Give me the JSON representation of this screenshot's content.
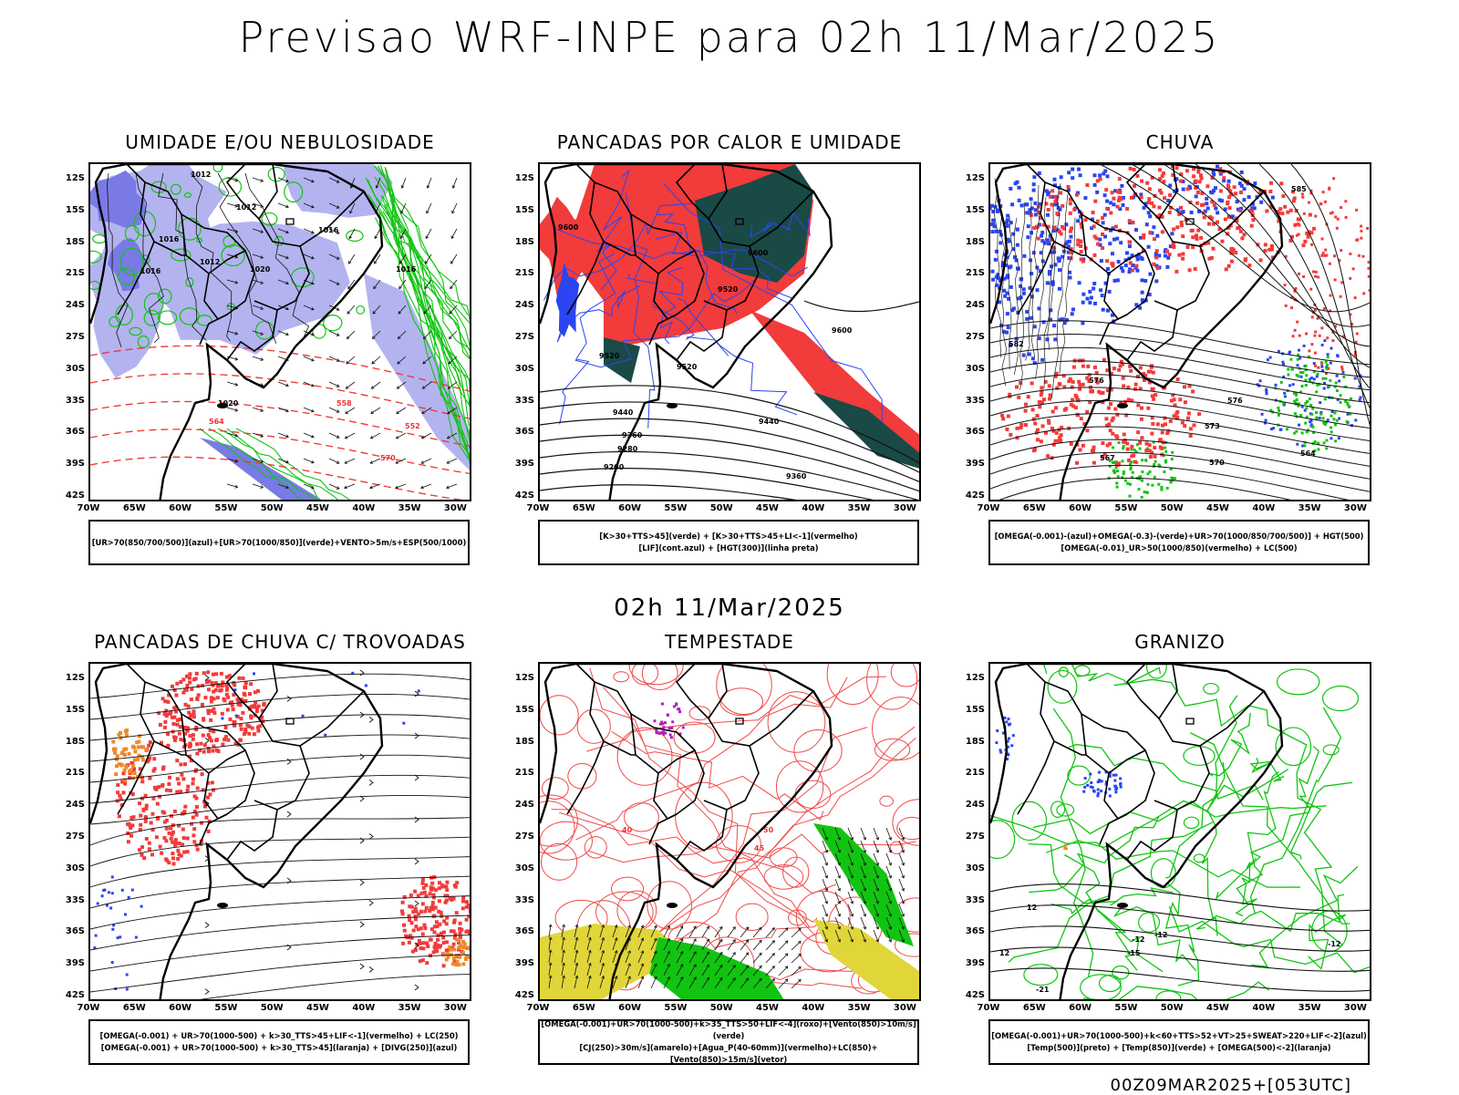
{
  "header": {
    "title": "Previsao WRF-INPE  para 02h 11/Mar/2025"
  },
  "subtitle": "02h 11/Mar/2025",
  "footer": "00Z09MAR2025+[053UTC]",
  "axes": {
    "y_labels": [
      "12S",
      "15S",
      "18S",
      "21S",
      "24S",
      "27S",
      "30S",
      "33S",
      "36S",
      "39S",
      "42S"
    ],
    "x_labels": [
      "70W",
      "65W",
      "60W",
      "55W",
      "50W",
      "45W",
      "40W",
      "35W",
      "30W"
    ]
  },
  "colors": {
    "blue": "#2b45f0",
    "lavender": "#b3b3f0",
    "purple": "#7a7ae6",
    "green": "#11c411",
    "red": "#f23b3b",
    "dark_teal": "#1a4a46",
    "yellow": "#e0d63a",
    "orange": "#ee8a2a",
    "magenta": "#b020c0"
  },
  "panels": [
    {
      "id": "umidade",
      "title": "UMIDADE E/OU NEBULOSIDADE",
      "legend": [
        "[UR>70(850/700/500)](azul)+[UR>70(1000/850)](verde)+VENTO>5m/s+ESP(500/1000)"
      ],
      "contour_labels": [
        "1012",
        "1012",
        "1012",
        "1016",
        "1016",
        "1020",
        "1016",
        "1016",
        "1020",
        "570",
        "564",
        "558",
        "552"
      ]
    },
    {
      "id": "pancadas_calor",
      "title": "PANCADAS POR CALOR E UMIDADE",
      "legend": [
        "[K>30+TTS>45](verde) + [K>30+TTS>45+LI<-1](vermelho)",
        "[LIF](cont.azul) + [HGT(300)](linha preta)"
      ],
      "contour_labels": [
        "9600",
        "9600",
        "9520",
        "9600",
        "9520",
        "9520",
        "9440",
        "9440",
        "9360",
        "9360",
        "9280",
        "9200"
      ]
    },
    {
      "id": "chuva",
      "title": "CHUVA",
      "legend": [
        "[OMEGA(-0.001)-(azul)+OMEGA(-0.3)-(verde)+UR>70(1000/850/700/500)] + HGT(500)",
        "[OMEGA(-0.01)_UR>50(1000/850)(vermelho) + LC(500)"
      ],
      "contour_labels": [
        "582",
        "576",
        "576",
        "573",
        "570",
        "567",
        "564",
        "585"
      ]
    },
    {
      "id": "pancadas_trovoadas",
      "title": "PANCADAS DE CHUVA C/ TROVOADAS",
      "legend": [
        "[OMEGA(-0.001) + UR>70(1000-500) + k>30_TTS>45+LIF<-1](vermelho) + LC(250)",
        "[OMEGA(-0.001) + UR>70(1000-500) + k>30_TTS>45](laranja) + [DIVG(250)](azul)"
      ],
      "contour_labels": []
    },
    {
      "id": "tempestade",
      "title": "TEMPESTADE",
      "legend": [
        "[OMEGA(-0.001)+UR>70(1000-500)+k>35_TTS>50+LIF<-4](roxo)+[Vento(850)>10m/s](verde)",
        "[CJ(250)>30m/s](amarelo)+[Agua_P(40-60mm)](vermelho)+LC(850)+[Vento(850)>15m/s](vetor)"
      ],
      "contour_labels": [
        "40",
        "50",
        "45"
      ]
    },
    {
      "id": "granizo",
      "title": "GRANIZO",
      "legend": [
        "[OMEGA(-0.001)+UR>70(1000-500)+k<60+TTS>52+VT>25+SWEAT>220+LIF<-2](azul)",
        "[Temp(500)](preto) + [Temp(850)](verde) + [OMEGA(500)<-2](laranja)"
      ],
      "contour_labels": [
        "-12",
        "-12",
        "-12",
        "12",
        "12",
        "-21",
        "-15"
      ]
    }
  ]
}
